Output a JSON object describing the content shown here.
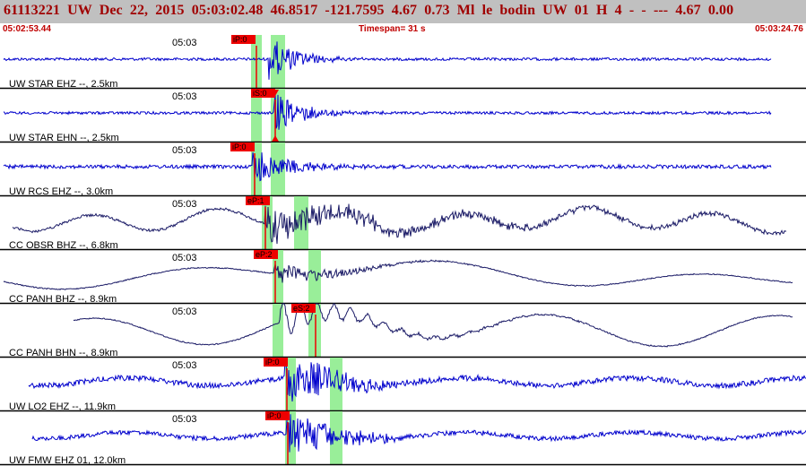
{
  "header": {
    "title": "61113221 UW Dec 22, 2015 05:03:02.48  46.8517 -121.7595  4.67 0.73 Ml le  bodin  UW 01 H  4  -  - --- 4.67 0.00",
    "start_time": "05:02:53.44",
    "timespan": "Timespan=  31 s",
    "end_time": "05:03:24.76"
  },
  "colors": {
    "header_bg": "#c0c0c0",
    "header_text": "#a00000",
    "time_text": "#c00000",
    "trace_blue": "#0000cc",
    "trace_dark": "#1a1a66",
    "pick_bg": "#ee0000",
    "window_green": "#99ee99"
  },
  "channels": [
    {
      "label": "UW STAR EHZ --, 2.5km",
      "tick": "05:03",
      "picks": [
        {
          "label": "iP:0"
        }
      ],
      "color": "trace_blue"
    },
    {
      "label": "UW STAR EHN --, 2.5km",
      "tick": "05:03",
      "picks": [
        {
          "label": "iS:0"
        }
      ],
      "color": "trace_blue"
    },
    {
      "label": "UW RCS EHZ --, 3.0km",
      "tick": "05:03",
      "picks": [
        {
          "label": "iP:0"
        }
      ],
      "color": "trace_blue"
    },
    {
      "label": "CC OBSR BHZ --, 6.8km",
      "tick": "05:03",
      "picks": [
        {
          "label": "eP:1"
        }
      ],
      "color": "trace_dark"
    },
    {
      "label": "CC PANH BHZ --, 8.9km",
      "tick": "05:03",
      "picks": [
        {
          "label": "eP:2"
        }
      ],
      "color": "trace_dark"
    },
    {
      "label": "CC PANH BHN --, 8.9km",
      "tick": "05:03",
      "picks": [
        {
          "label": "eS:2"
        }
      ],
      "color": "trace_dark"
    },
    {
      "label": "UW LO2 EHZ --, 11.9km",
      "tick": "05:03",
      "picks": [
        {
          "label": "iP:0"
        }
      ],
      "color": "trace_blue"
    },
    {
      "label": "UW FMW EHZ 01, 12.0km",
      "tick": "05:03",
      "picks": [
        {
          "label": "iP:0"
        }
      ],
      "color": "trace_blue"
    }
  ]
}
